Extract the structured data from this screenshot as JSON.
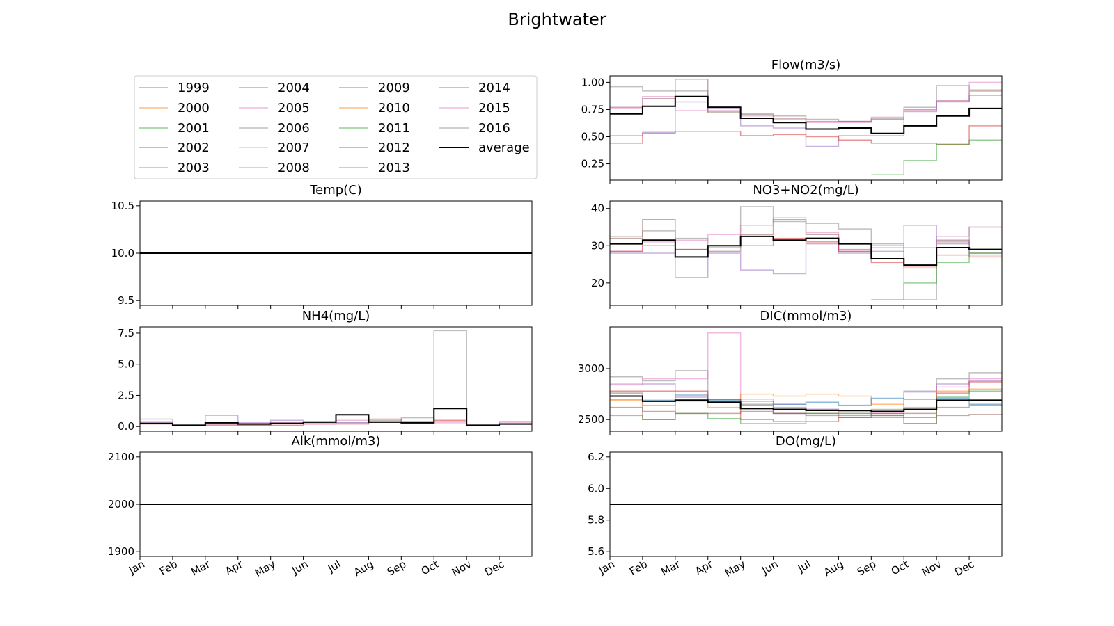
{
  "figure": {
    "title": "Brightwater"
  },
  "colors": {
    "1999": "#1f77b4",
    "2000": "#ff7f0e",
    "2001": "#2ca02c",
    "2002": "#d62728",
    "2003": "#9467bd",
    "2004": "#8c564b",
    "2005": "#e377c2",
    "2006": "#7f7f7f",
    "2007": "#bcbd22",
    "2008": "#17becf",
    "2009": "#1f77b4",
    "2010": "#ff7f0e",
    "2011": "#2ca02c",
    "2012": "#d62728",
    "2013": "#9467bd",
    "2014": "#8c564b",
    "2015": "#e377c2",
    "2016": "#7f7f7f",
    "average": "#000000"
  },
  "legend": {
    "entries": [
      "1999",
      "2000",
      "2001",
      "2002",
      "2003",
      "2004",
      "2005",
      "2006",
      "2007",
      "2008",
      "2009",
      "2010",
      "2011",
      "2012",
      "2013",
      "2014",
      "2015",
      "2016",
      "average"
    ],
    "columns": 4,
    "placement": "upper-left panel"
  },
  "chart_data": [
    {
      "id": "temp",
      "type": "line",
      "title": "Temp(C)",
      "x_labels": [
        "Jan",
        "Feb",
        "Mar",
        "Apr",
        "May",
        "Jun",
        "Jul",
        "Aug",
        "Sep",
        "Oct",
        "Nov",
        "Dec"
      ],
      "show_xlabels": false,
      "ylim": [
        9.45,
        10.55
      ],
      "yticks": [
        9.5,
        10.0,
        10.5
      ],
      "ytick_labels": [
        "9.5",
        "10.0",
        "10.5"
      ],
      "series": [
        {
          "name": "average",
          "values": [
            10,
            10,
            10,
            10,
            10,
            10,
            10,
            10,
            10,
            10,
            10,
            10
          ]
        }
      ]
    },
    {
      "id": "nh4",
      "type": "line",
      "title": "NH4(mg/L)",
      "x_labels": [
        "Jan",
        "Feb",
        "Mar",
        "Apr",
        "May",
        "Jun",
        "Jul",
        "Aug",
        "Sep",
        "Oct",
        "Nov",
        "Dec"
      ],
      "show_xlabels": false,
      "ylim": [
        -0.38,
        8.0
      ],
      "yticks": [
        0.0,
        2.5,
        5.0,
        7.5
      ],
      "ytick_labels": [
        "0.0",
        "2.5",
        "5.0",
        "7.5"
      ],
      "series": [
        {
          "name": "2006",
          "values": [
            0.6,
            0.1,
            0.2,
            0.2,
            0.3,
            0.3,
            0.3,
            0.5,
            0.7,
            7.7,
            0.1,
            0.4
          ]
        },
        {
          "name": "2003",
          "values": [
            0.3,
            0.1,
            0.9,
            0.3,
            0.5,
            0.4,
            0.3,
            0.4,
            0.3,
            0.4,
            0.1,
            0.2
          ]
        },
        {
          "name": "2005",
          "values": [
            0.4,
            0.1,
            0.2,
            0.1,
            0.3,
            0.2,
            0.5,
            0.4,
            0.3,
            0.3,
            0.1,
            0.3
          ]
        },
        {
          "name": "2002",
          "values": [
            0.2,
            0.05,
            0.1,
            0.1,
            0.1,
            0.2,
            0.2,
            0.6,
            0.4,
            0.5,
            0.1,
            0.2
          ]
        },
        {
          "name": "average",
          "values": [
            0.25,
            0.1,
            0.3,
            0.2,
            0.25,
            0.35,
            0.95,
            0.35,
            0.3,
            1.45,
            0.1,
            0.2
          ]
        }
      ]
    },
    {
      "id": "alk",
      "type": "line",
      "title": "Alk(mmol/m3)",
      "x_labels": [
        "Jan",
        "Feb",
        "Mar",
        "Apr",
        "May",
        "Jun",
        "Jul",
        "Aug",
        "Sep",
        "Oct",
        "Nov",
        "Dec"
      ],
      "show_xlabels": true,
      "ylim": [
        1890,
        2110
      ],
      "yticks": [
        1900,
        2000,
        2100
      ],
      "ytick_labels": [
        "1900",
        "2000",
        "2100"
      ],
      "series": [
        {
          "name": "average",
          "values": [
            2000,
            2000,
            2000,
            2000,
            2000,
            2000,
            2000,
            2000,
            2000,
            2000,
            2000,
            2000
          ]
        }
      ]
    },
    {
      "id": "flow",
      "type": "line",
      "title": "Flow(m3/s)",
      "x_labels": [
        "Jan",
        "Feb",
        "Mar",
        "Apr",
        "May",
        "Jun",
        "Jul",
        "Aug",
        "Sep",
        "Oct",
        "Nov",
        "Dec"
      ],
      "show_xlabels": false,
      "ylim": [
        0.1,
        1.06
      ],
      "yticks": [
        0.25,
        0.5,
        0.75,
        1.0
      ],
      "ytick_labels": [
        "0.25",
        "0.50",
        "0.75",
        "1.00"
      ],
      "series": [
        {
          "name": "2006",
          "values": [
            0.96,
            0.92,
            0.92,
            0.73,
            0.71,
            0.69,
            0.66,
            0.64,
            0.67,
            0.77,
            0.97,
            0.93
          ]
        },
        {
          "name": "2014",
          "values": [
            0.77,
            0.85,
            1.03,
            0.72,
            0.7,
            0.67,
            0.64,
            0.64,
            0.66,
            0.75,
            0.83,
            0.92
          ]
        },
        {
          "name": "2015",
          "values": [
            0.76,
            0.87,
            0.74,
            0.74,
            0.69,
            0.66,
            0.63,
            0.63,
            0.68,
            0.74,
            0.83,
            1.0
          ]
        },
        {
          "name": "2003",
          "values": [
            0.51,
            0.54,
            0.82,
            0.78,
            0.6,
            0.58,
            0.41,
            0.51,
            0.51,
            0.73,
            0.82,
            0.88
          ]
        },
        {
          "name": "2002",
          "values": [
            0.44,
            0.53,
            0.55,
            0.55,
            0.51,
            0.52,
            0.5,
            0.47,
            0.44,
            0.44,
            0.43,
            0.6
          ]
        },
        {
          "name": "2001",
          "values": [
            null,
            null,
            null,
            null,
            null,
            null,
            null,
            null,
            0.15,
            0.28,
            0.43,
            0.47
          ]
        },
        {
          "name": "average",
          "values": [
            0.71,
            0.78,
            0.87,
            0.77,
            0.67,
            0.63,
            0.57,
            0.58,
            0.53,
            0.6,
            0.69,
            0.76
          ]
        }
      ]
    },
    {
      "id": "no3",
      "type": "line",
      "title": "NO3+NO2(mg/L)",
      "x_labels": [
        "Jan",
        "Feb",
        "Mar",
        "Apr",
        "May",
        "Jun",
        "Jul",
        "Aug",
        "Sep",
        "Oct",
        "Nov",
        "Dec"
      ],
      "show_xlabels": false,
      "ylim": [
        14,
        42
      ],
      "yticks": [
        20,
        30,
        40
      ],
      "ytick_labels": [
        "20",
        "30",
        "40"
      ],
      "series": [
        {
          "name": "2006",
          "values": [
            32.5,
            34.0,
            32.0,
            29.5,
            40.5,
            36.5,
            36.0,
            34.5,
            30.5,
            15.5,
            30.5,
            35.0
          ]
        },
        {
          "name": "2014",
          "values": [
            32.0,
            37.0,
            29.0,
            28.5,
            33.0,
            37.0,
            33.0,
            29.0,
            30.0,
            24.0,
            31.5,
            28.0
          ]
        },
        {
          "name": "2015",
          "values": [
            28.5,
            31.0,
            31.5,
            33.0,
            35.5,
            37.5,
            33.5,
            28.5,
            29.5,
            29.5,
            32.5,
            35.0
          ]
        },
        {
          "name": "2003",
          "values": [
            28.0,
            28.0,
            21.5,
            28.0,
            23.5,
            22.5,
            30.5,
            28.0,
            28.5,
            35.5,
            31.0,
            27.5
          ]
        },
        {
          "name": "2002",
          "values": [
            28.5,
            30.0,
            29.0,
            30.0,
            30.0,
            32.0,
            31.0,
            28.5,
            25.5,
            24.5,
            27.5,
            27.0
          ]
        },
        {
          "name": "2001",
          "values": [
            null,
            null,
            null,
            null,
            null,
            null,
            null,
            null,
            15.5,
            20.0,
            25.5,
            28.0
          ]
        },
        {
          "name": "average",
          "values": [
            30.5,
            31.5,
            27.0,
            30.0,
            32.5,
            31.5,
            32.0,
            30.5,
            26.5,
            24.8,
            29.5,
            29.0
          ]
        }
      ]
    },
    {
      "id": "dic",
      "type": "line",
      "title": "DIC(mmol/m3)",
      "x_labels": [
        "Jan",
        "Feb",
        "Mar",
        "Apr",
        "May",
        "Jun",
        "Jul",
        "Aug",
        "Sep",
        "Oct",
        "Nov",
        "Dec"
      ],
      "show_xlabels": false,
      "ylim": [
        2385,
        3410
      ],
      "yticks": [
        2500,
        3000
      ],
      "ytick_labels": [
        "2500",
        "3000"
      ],
      "series": [
        {
          "name": "2006",
          "values": [
            2920,
            2880,
            2980,
            2700,
            2650,
            2620,
            2600,
            2590,
            2600,
            2780,
            2900,
            2960
          ]
        },
        {
          "name": "2005",
          "values": [
            2850,
            2900,
            2900,
            3350,
            2700,
            2650,
            2600,
            2560,
            2580,
            2700,
            2820,
            2900
          ]
        },
        {
          "name": "2003",
          "values": [
            2840,
            2850,
            2720,
            2700,
            2600,
            2560,
            2600,
            2580,
            2560,
            2770,
            2850,
            2880
          ]
        },
        {
          "name": "2010",
          "values": [
            2690,
            2640,
            2680,
            2620,
            2750,
            2730,
            2750,
            2730,
            2650,
            2620,
            2780,
            2800
          ]
        },
        {
          "name": "2012",
          "values": [
            2780,
            2780,
            2780,
            2700,
            2500,
            2480,
            2480,
            2520,
            2560,
            2520,
            2760,
            2870
          ]
        },
        {
          "name": "2001",
          "values": [
            2540,
            2500,
            2560,
            2510,
            2460,
            2460,
            2560,
            2560,
            2540,
            2460,
            2720,
            2780
          ]
        },
        {
          "name": "2009",
          "values": [
            2700,
            2690,
            2740,
            2690,
            2680,
            2650,
            2670,
            2640,
            2710,
            2700,
            2710,
            2650
          ]
        },
        {
          "name": "2014",
          "values": [
            2760,
            2500,
            2700,
            2700,
            2640,
            2560,
            2560,
            2540,
            2540,
            2460,
            2540,
            2550
          ]
        },
        {
          "name": "2004",
          "values": [
            2620,
            2580,
            2560,
            2560,
            2580,
            2560,
            2540,
            2520,
            2520,
            2560,
            2620,
            2640
          ]
        },
        {
          "name": "average",
          "values": [
            2730,
            2680,
            2690,
            2670,
            2610,
            2600,
            2590,
            2590,
            2580,
            2600,
            2690,
            2690
          ]
        }
      ]
    },
    {
      "id": "do",
      "type": "line",
      "title": "DO(mg/L)",
      "x_labels": [
        "Jan",
        "Feb",
        "Mar",
        "Apr",
        "May",
        "Jun",
        "Jul",
        "Aug",
        "Sep",
        "Oct",
        "Nov",
        "Dec"
      ],
      "show_xlabels": true,
      "ylim": [
        5.57,
        6.23
      ],
      "yticks": [
        5.6,
        5.8,
        6.0,
        6.2
      ],
      "ytick_labels": [
        "5.6",
        "5.8",
        "6.0",
        "6.2"
      ],
      "series": [
        {
          "name": "average",
          "values": [
            5.9,
            5.9,
            5.9,
            5.9,
            5.9,
            5.9,
            5.9,
            5.9,
            5.9,
            5.9,
            5.9,
            5.9
          ]
        }
      ]
    }
  ]
}
